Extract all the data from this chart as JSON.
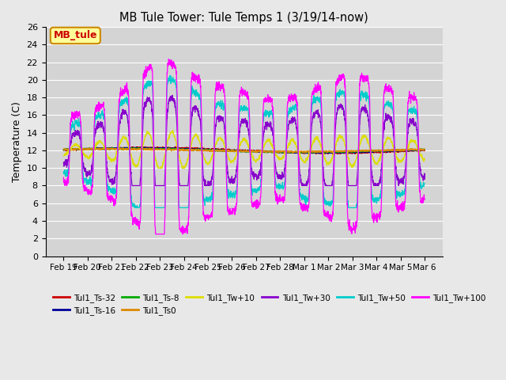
{
  "title": "MB Tule Tower: Tule Temps 1 (3/19/14-now)",
  "ylabel": "Temperature (C)",
  "background_color": "#e8e8e8",
  "plot_bg_color": "#d4d4d4",
  "ylim": [
    0,
    26
  ],
  "yticks": [
    0,
    2,
    4,
    6,
    8,
    10,
    12,
    14,
    16,
    18,
    20,
    22,
    24,
    26
  ],
  "xtick_labels": [
    "Feb 19",
    "Feb 20",
    "Feb 21",
    "Feb 22",
    "Feb 23",
    "Feb 24",
    "Feb 25",
    "Feb 26",
    "Feb 27",
    "Feb 28",
    "Mar 1",
    "Mar 2",
    "Mar 3",
    "Mar 4",
    "Mar 5",
    "Mar 6"
  ],
  "series": [
    {
      "label": "Tul1_Ts-32",
      "color": "#cc0000"
    },
    {
      "label": "Tul1_Ts-16",
      "color": "#000099"
    },
    {
      "label": "Tul1_Ts-8",
      "color": "#00aa00"
    },
    {
      "label": "Tul1_Ts0",
      "color": "#dd8800"
    },
    {
      "label": "Tul1_Tw+10",
      "color": "#dddd00"
    },
    {
      "label": "Tul1_Tw+30",
      "color": "#8800cc"
    },
    {
      "label": "Tul1_Tw+50",
      "color": "#00cccc"
    },
    {
      "label": "Tul1_Tw+100",
      "color": "#ff00ff"
    }
  ],
  "legend_box_color": "#ffff99",
  "legend_box_edge": "#cc8800",
  "legend_box_text": "MB_tule",
  "legend_box_text_color": "#cc0000",
  "n_days": 15,
  "base_temp": 12.0
}
